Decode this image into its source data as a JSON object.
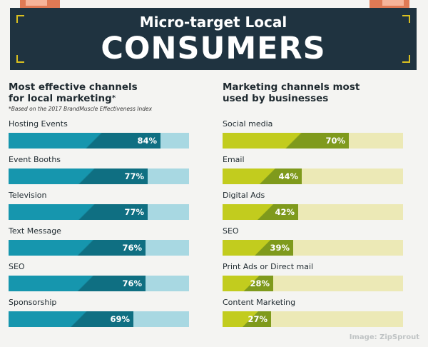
{
  "colors": {
    "banner": "#1f3340",
    "left_track": "#a8d8e2",
    "left_fill": "#1696ae",
    "left_fill_dark": "#0f6f82",
    "right_track": "#ece9b6",
    "right_fill": "#c2cc1e",
    "right_fill_dark": "#7f9a1c"
  },
  "header": {
    "subtitle": "Micro-target Local",
    "title": "CONSUMERS"
  },
  "left": {
    "title_line1": "Most effective channels",
    "title_line2": "for local marketing",
    "title_mark": "*",
    "note": "*Based on the 2017 BrandMuscle Effectiveness Index"
  },
  "right": {
    "title_line1": "Marketing channels most",
    "title_line2": "used by businesses"
  },
  "credit": "Image: ZipSprout",
  "chart_data": [
    {
      "type": "bar",
      "title": "Most effective channels for local marketing*",
      "categories": [
        "Hosting Events",
        "Event Booths",
        "Television",
        "Text Message",
        "SEO",
        "Sponsorship"
      ],
      "values": [
        84,
        77,
        77,
        76,
        76,
        69
      ],
      "labels": [
        "84%",
        "77%",
        "77%",
        "76%",
        "76%",
        "69%"
      ],
      "xlim": [
        0,
        100
      ],
      "orientation": "horizontal"
    },
    {
      "type": "bar",
      "title": "Marketing channels most used by businesses",
      "categories": [
        "Social media",
        "Email",
        "Digital Ads",
        "SEO",
        "Print Ads or Direct mail",
        "Content Marketing"
      ],
      "values": [
        70,
        44,
        42,
        39,
        28,
        27
      ],
      "labels": [
        "70%",
        "44%",
        "42%",
        "39%",
        "28%",
        "27%"
      ],
      "xlim": [
        0,
        100
      ],
      "orientation": "horizontal"
    }
  ]
}
